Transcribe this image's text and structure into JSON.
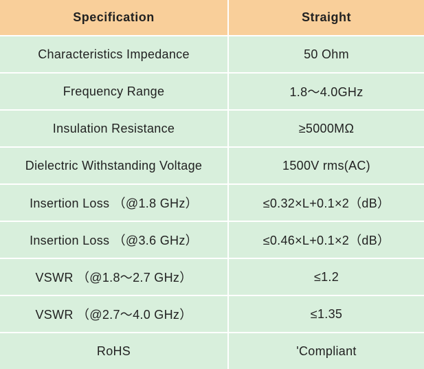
{
  "table": {
    "headers": [
      "Specification",
      "Straight"
    ],
    "rows": [
      [
        "Characteristics Impedance",
        "50 Ohm"
      ],
      [
        "Frequency Range",
        "1.8～4.0GHz"
      ],
      [
        "Insulation Resistance",
        "≥5000MΩ"
      ],
      [
        "Dielectric Withstanding Voltage",
        "1500V rms(AC)"
      ],
      [
        "Insertion Loss （@1.8 GHz）",
        "≤0.32×L+0.1×2（dB）"
      ],
      [
        "Insertion Loss （@3.6 GHz）",
        "≤0.46×L+0.1×2（dB）"
      ],
      [
        "VSWR （@1.8～2.7 GHz）",
        "≤1.2"
      ],
      [
        "VSWR （@2.7～4.0 GHz）",
        "≤1.35"
      ],
      [
        "RoHS",
        "'Compliant"
      ]
    ]
  },
  "colors": {
    "header_bg": "#f9cf9a",
    "row_bg": "#d8efdc",
    "divider": "#ffffff",
    "text": "#222222"
  }
}
